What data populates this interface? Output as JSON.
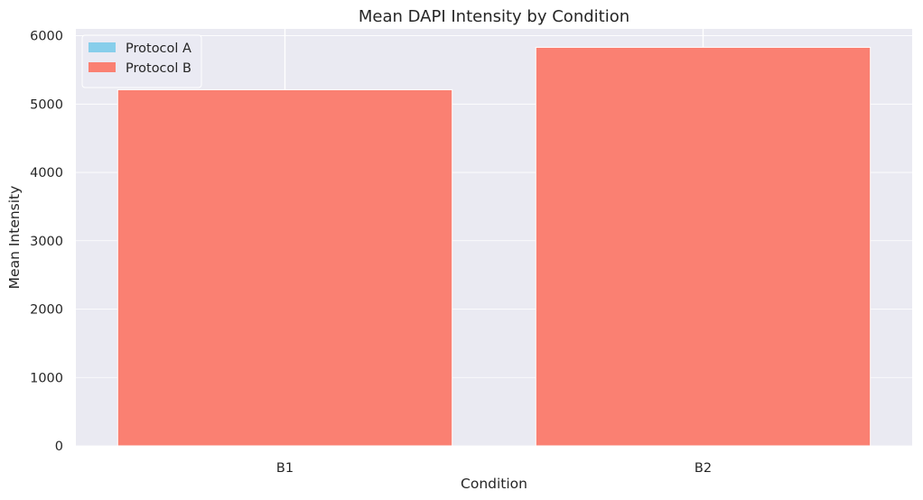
{
  "chart_data": {
    "type": "bar",
    "title": "Mean DAPI Intensity by Condition",
    "xlabel": "Condition",
    "ylabel": "Mean Intensity",
    "categories": [
      "B1",
      "B2"
    ],
    "series": [
      {
        "name": "Protocol A",
        "color": "#87ceeb",
        "values": [
          null,
          null
        ]
      },
      {
        "name": "Protocol B",
        "color": "#fa8072",
        "values": [
          5210,
          5830
        ]
      }
    ],
    "ylim": [
      0,
      6100
    ],
    "yticks": [
      0,
      1000,
      2000,
      3000,
      4000,
      5000,
      6000
    ],
    "grid": true,
    "legend_position": "top-left",
    "background": "#eaeaf2"
  }
}
